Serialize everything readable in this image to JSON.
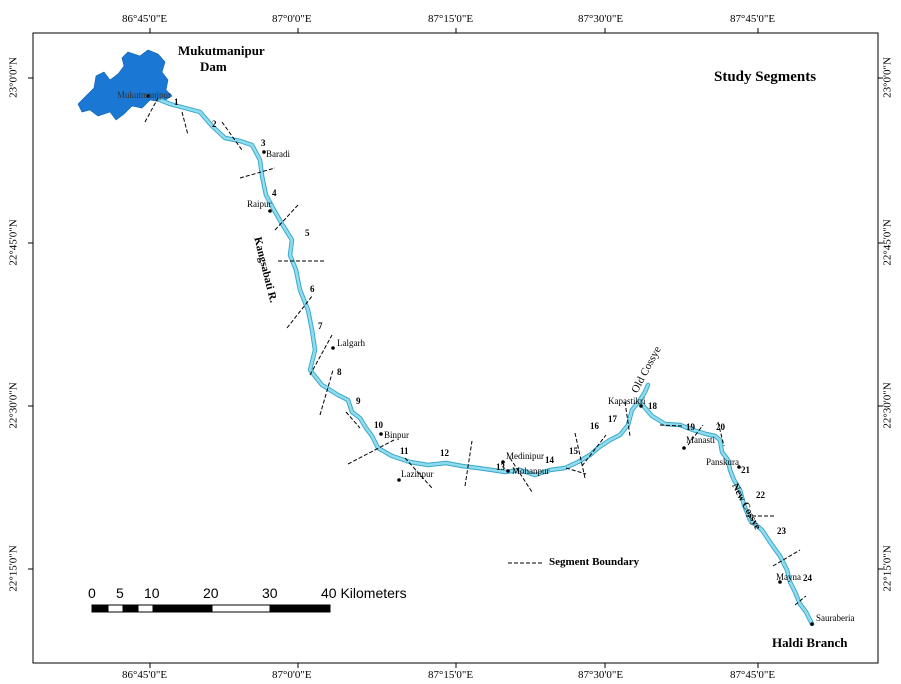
{
  "map_title": "Study Segments",
  "top_coords": [
    "86°45'0\"E",
    "87°0'0\"E",
    "87°15'0\"E",
    "87°30'0\"E",
    "87°45'0\"E"
  ],
  "bottom_coords": [
    "86°45'0\"E",
    "87°0'0\"E",
    "87°15'0\"E",
    "87°30'0\"E",
    "87°45'0\"E"
  ],
  "left_coords": [
    "23°0'0\"N",
    "22°45'0\"N",
    "22°30'0\"N",
    "22°15'0\"N"
  ],
  "right_coords": [
    "23°0'0\"N",
    "22°45'0\"N",
    "22°30'0\"N",
    "22°15'0\"N"
  ],
  "dam_name_line1": "Mukutmanipur",
  "dam_name_line2": "Dam",
  "dam_town": "Mukutmanipur",
  "river_name": "Kangsabati R.",
  "old_channel": "Old Cossye",
  "new_channel": "New Cossye",
  "branch_name": "Haldi Branch",
  "places": {
    "baradi": "Baradi",
    "raipur": "Raipur",
    "lalgarh": "Lalgarh",
    "binpur": "Binpur",
    "lazinpur": "Lazinpur",
    "medinipur": "Medinipur",
    "mohanpur": "Mohanpur",
    "kapastikri": "Kapastikri",
    "manasti": "Manasti",
    "panskura": "Panskura",
    "mayna": "Mayna",
    "sauraberia": "Sauraberia"
  },
  "segments": [
    "1",
    "2",
    "3",
    "4",
    "5",
    "6",
    "7",
    "8",
    "9",
    "10",
    "11",
    "12",
    "13",
    "14",
    "15",
    "16",
    "17",
    "18",
    "19",
    "20",
    "21",
    "22",
    "23",
    "24"
  ],
  "legend_label": "Segment Boundary",
  "scale_labels": [
    "0",
    "5",
    "10",
    "20",
    "30",
    "40 Kilometers"
  ],
  "colors": {
    "river": "#8fdcee",
    "river_edge": "#3aa7c8",
    "reservoir": "#1a78d4",
    "frame": "#000000"
  }
}
